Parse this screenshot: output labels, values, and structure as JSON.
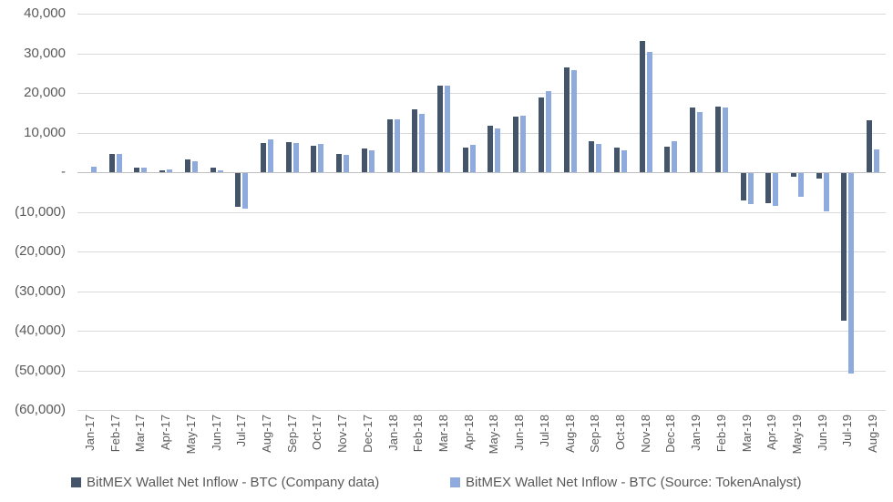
{
  "chart_data": {
    "type": "bar",
    "title": "",
    "xlabel": "",
    "ylabel": "",
    "categories": [
      "Jan-17",
      "Feb-17",
      "Mar-17",
      "Apr-17",
      "May-17",
      "Jun-17",
      "Jul-17",
      "Aug-17",
      "Sep-17",
      "Oct-17",
      "Nov-17",
      "Dec-17",
      "Jan-18",
      "Feb-18",
      "Mar-18",
      "Apr-18",
      "May-18",
      "Jun-18",
      "Jul-18",
      "Aug-18",
      "Sep-18",
      "Oct-18",
      "Nov-18",
      "Dec-18",
      "Jan-19",
      "Feb-19",
      "Mar-19",
      "Apr-19",
      "May-19",
      "Jun-19",
      "Jul-19",
      "Aug-19"
    ],
    "series": [
      {
        "name": "BitMEX Wallet Net Inflow - BTC (Company data)",
        "color": "#44546A",
        "values": [
          null,
          4700,
          1200,
          650,
          3300,
          1150,
          -8450,
          7350,
          7650,
          6700,
          4750,
          6100,
          13400,
          15900,
          22000,
          6350,
          11850,
          14150,
          19000,
          26600,
          7900,
          6200,
          33200,
          6500,
          16500,
          16600,
          -6800,
          -7450,
          -900,
          -1300,
          -37200,
          13150
        ]
      },
      {
        "name": "BitMEX Wallet Net Inflow - BTC (Source: TokenAnalyst)",
        "color": "#8FAADC",
        "values": [
          1400,
          4600,
          1250,
          700,
          2900,
          550,
          -8850,
          8250,
          7400,
          7200,
          4350,
          5500,
          13450,
          14800,
          21950,
          7000,
          11100,
          14250,
          20500,
          25800,
          7100,
          5500,
          30500,
          8000,
          15300,
          16400,
          -7700,
          -8200,
          -5900,
          -9600,
          -50500,
          5800
        ]
      }
    ],
    "ylim": [
      -60000,
      40000
    ],
    "y_tick_interval": 10000,
    "y_ticks": [
      {
        "value": 40000,
        "label": "40,000"
      },
      {
        "value": 30000,
        "label": "30,000"
      },
      {
        "value": 20000,
        "label": "20,000"
      },
      {
        "value": 10000,
        "label": "10,000"
      },
      {
        "value": 0,
        "label": "-"
      },
      {
        "value": -10000,
        "label": "(10,000)"
      },
      {
        "value": -20000,
        "label": "(20,000)"
      },
      {
        "value": -30000,
        "label": "(30,000)"
      },
      {
        "value": -40000,
        "label": "(40,000)"
      },
      {
        "value": -50000,
        "label": "(50,000)"
      },
      {
        "value": -60000,
        "label": "(60,000)"
      }
    ],
    "grid": true,
    "legend_position": "bottom"
  },
  "colors": {
    "background": "#ffffff",
    "gridline": "#d9d9d9",
    "axis_line": "#bfbfbf",
    "text": "#595959",
    "series1": "#44546A",
    "series2": "#8FAADC"
  }
}
